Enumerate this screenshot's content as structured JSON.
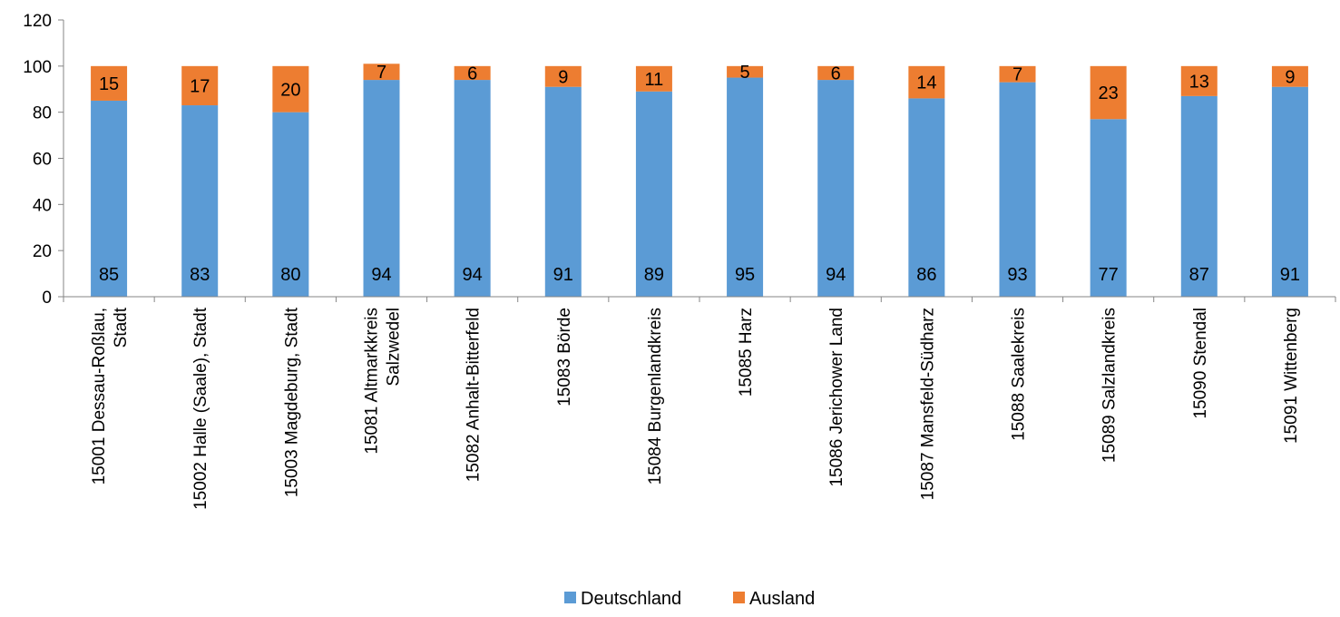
{
  "chart_data": {
    "type": "bar",
    "stacked": true,
    "categories": [
      [
        "15001  Dessau-Roßlau,",
        "Stadt"
      ],
      [
        "15002  Halle (Saale), Stadt"
      ],
      [
        "15003  Magdeburg, Stadt"
      ],
      [
        "15081  Altmarkkreis",
        "Salzwedel"
      ],
      [
        "15082  Anhalt-Bitterfeld"
      ],
      [
        "15083  Börde"
      ],
      [
        "15084  Burgenlandkreis"
      ],
      [
        "15085  Harz"
      ],
      [
        "15086  Jerichower Land"
      ],
      [
        "15087  Mansfeld-Südharz"
      ],
      [
        "15088  Saalekreis"
      ],
      [
        "15089  Salzlandkreis"
      ],
      [
        "15090  Stendal"
      ],
      [
        "15091  Wittenberg"
      ]
    ],
    "series": [
      {
        "name": "Deutschland",
        "color": "#5B9BD5",
        "values": [
          85,
          83,
          80,
          94,
          94,
          91,
          89,
          95,
          94,
          86,
          93,
          77,
          87,
          91
        ]
      },
      {
        "name": "Ausland",
        "color": "#ED7D31",
        "values": [
          15,
          17,
          20,
          7,
          6,
          9,
          11,
          5,
          6,
          14,
          7,
          23,
          13,
          9
        ]
      }
    ],
    "ylim": [
      0,
      120
    ],
    "yticks": [
      0,
      20,
      40,
      60,
      80,
      100,
      120
    ],
    "grid": false,
    "legend_position": "bottom"
  }
}
